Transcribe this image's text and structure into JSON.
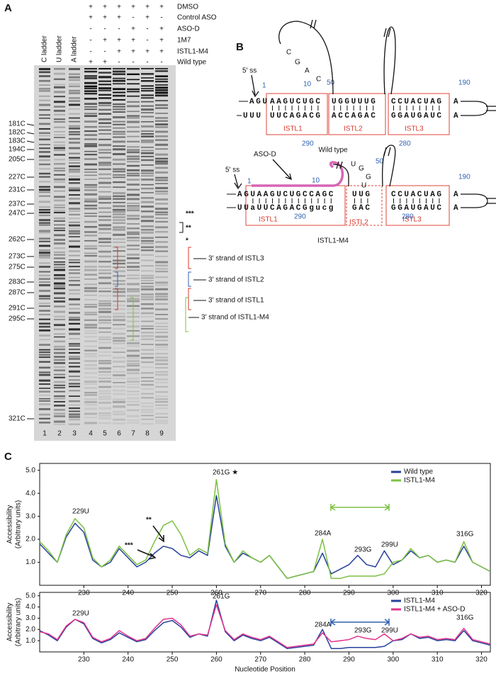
{
  "panel_a": {
    "label": "A",
    "lane_headers": [
      "C ladder",
      "U ladder",
      "A ladder"
    ],
    "conditions": [
      {
        "name": "DMSO",
        "marks": [
          "+",
          "+",
          "+",
          "+",
          "+",
          "+"
        ]
      },
      {
        "name": "Control ASO",
        "marks": [
          "+",
          "+",
          "+",
          "-",
          "+",
          "-"
        ]
      },
      {
        "name": "ASO-D",
        "marks": [
          "-",
          "-",
          "-",
          "+",
          "-",
          "+"
        ]
      },
      {
        "name": "1M7",
        "marks": [
          "-",
          "+",
          "+",
          "+",
          "-",
          "+"
        ]
      },
      {
        "name": "ISTL1-M4",
        "marks": [
          "-",
          "-",
          "+",
          "+",
          "+",
          "+"
        ]
      },
      {
        "name": "Wild type",
        "marks": [
          "+",
          "+",
          "-",
          "-",
          "-",
          "-"
        ]
      }
    ],
    "band_labels": [
      "181C",
      "182C",
      "183C",
      "194C",
      "205C",
      "227C",
      "231C",
      "237C",
      "247C",
      "262C",
      "273C",
      "275C",
      "283C",
      "287C",
      "291C",
      "295C",
      "321C"
    ],
    "lane_numbers": [
      1,
      2,
      3,
      4,
      5,
      6,
      7,
      8,
      9
    ],
    "star_marks": [
      "***",
      "**",
      "*"
    ],
    "strand_labels": [
      "3′ strand of ISTL3",
      "3′ strand of ISTL2",
      "3′ strand of ISTL1",
      "3′ strand of ISTL1-M4"
    ]
  },
  "panel_b": {
    "label": "B",
    "wild_type": {
      "caption": "Wild type",
      "splice_site": "5′ ss",
      "numbers": [
        "1",
        "10",
        "50",
        "290",
        "280",
        "190"
      ],
      "loop": [
        "C",
        "G",
        "A",
        "C"
      ],
      "top": [
        "AGU",
        "AAGUCUGC",
        "UGGUUUG",
        "CCUACUAG",
        "A"
      ],
      "bottom": [
        "UUU",
        "UUCAGACG",
        "ACCAGAC",
        "GGAUGAUC",
        "A"
      ],
      "boxes": [
        "ISTL1",
        "ISTL2",
        "ISTL3"
      ]
    },
    "mutant": {
      "caption": "ISTL1-M4",
      "splice_site": "5′ ss",
      "aso": "ASO-D",
      "numbers": [
        "1",
        "10",
        "50",
        "290",
        "280",
        "190"
      ],
      "loop": [
        "U",
        "G",
        "G",
        "U"
      ],
      "top": [
        "AG",
        "UAAGUCUGCCAGC",
        "UUG",
        "CCUACUAG",
        "A"
      ],
      "bottom": [
        "UU",
        "a",
        "UUCAGACG",
        "gucg",
        "GAC",
        "GGAUGAUC",
        "A"
      ],
      "boxes": [
        "ISTL1",
        "ISTL2",
        "ISTL3"
      ]
    }
  },
  "panel_c_label": "C",
  "chart_data": [
    {
      "type": "line",
      "ylabel": [
        "Accessibility",
        "(Arbitrary units)"
      ],
      "x": [
        220,
        222,
        224,
        226,
        228,
        230,
        232,
        234,
        236,
        238,
        240,
        242,
        244,
        246,
        248,
        250,
        252,
        254,
        256,
        258,
        260,
        262,
        264,
        266,
        268,
        270,
        272,
        274,
        276,
        278,
        280,
        282,
        284,
        286,
        288,
        290,
        292,
        294,
        296,
        298,
        300,
        302,
        304,
        306,
        308,
        310,
        312,
        314,
        316,
        318,
        320,
        322
      ],
      "series": [
        {
          "name": "Wild type",
          "color": "#27419a",
          "values": [
            1.8,
            1.4,
            1.0,
            2.1,
            2.7,
            2.3,
            1.1,
            0.8,
            1.0,
            1.6,
            1.2,
            0.8,
            1.0,
            1.4,
            1.7,
            1.6,
            1.3,
            1.2,
            1.5,
            1.3,
            3.9,
            1.7,
            1.0,
            1.4,
            1.2,
            1.0,
            1.3,
            0.8,
            0.3,
            0.4,
            0.5,
            0.6,
            1.4,
            0.5,
            0.7,
            0.9,
            1.3,
            0.9,
            0.8,
            1.5,
            0.9,
            1.1,
            1.5,
            1.2,
            1.3,
            1.0,
            1.1,
            1.0,
            1.7,
            1.0,
            0.8,
            0.6
          ]
        },
        {
          "name": "ISTL1-M4",
          "color": "#7dc142",
          "values": [
            1.9,
            1.5,
            1.0,
            2.2,
            2.9,
            2.5,
            1.2,
            0.8,
            1.1,
            1.7,
            1.3,
            0.9,
            1.1,
            1.9,
            2.6,
            2.8,
            2.2,
            1.3,
            1.6,
            1.4,
            4.6,
            1.8,
            1.0,
            1.5,
            1.2,
            1.0,
            1.3,
            0.8,
            0.3,
            0.4,
            0.5,
            0.6,
            2.0,
            0.3,
            0.3,
            0.4,
            0.4,
            0.4,
            0.4,
            0.5,
            1.0,
            1.1,
            1.6,
            1.2,
            1.3,
            1.0,
            1.1,
            1.0,
            1.9,
            1.0,
            0.8,
            0.6
          ]
        }
      ],
      "xlim": [
        220,
        322
      ],
      "ylim": [
        0,
        5.3
      ],
      "xticks": [
        230,
        240,
        250,
        260,
        270,
        280,
        290,
        300,
        310,
        320
      ],
      "yticks": [
        {
          "value": 1,
          "label": "1.0"
        },
        {
          "value": 2,
          "label": "2.0"
        },
        {
          "value": 3,
          "label": "3.0"
        },
        {
          "value": 4,
          "label": "4.0"
        },
        {
          "value": 5,
          "label": "5.0"
        }
      ],
      "annotations": [
        "229U",
        "***",
        "**",
        "261G ★",
        "284A",
        "293G",
        "299U",
        "316G"
      ],
      "legend": "upper right"
    },
    {
      "type": "line",
      "ylabel": [
        "Accessibility",
        "(Arbitrary units)"
      ],
      "xlabel": "Nucleotide Position",
      "x": [
        220,
        222,
        224,
        226,
        228,
        230,
        232,
        234,
        236,
        238,
        240,
        242,
        244,
        246,
        248,
        250,
        252,
        254,
        256,
        258,
        260,
        262,
        264,
        266,
        268,
        270,
        272,
        274,
        276,
        278,
        280,
        282,
        284,
        286,
        288,
        290,
        292,
        294,
        296,
        298,
        300,
        302,
        304,
        306,
        308,
        310,
        312,
        314,
        316,
        318,
        320,
        322
      ],
      "series": [
        {
          "name": "ISTL1-M4",
          "color": "#27419a",
          "values": [
            1.9,
            1.5,
            1.0,
            2.2,
            2.9,
            2.5,
            1.2,
            0.8,
            1.1,
            1.7,
            1.3,
            0.9,
            1.1,
            1.9,
            2.6,
            2.8,
            2.2,
            1.3,
            1.6,
            1.4,
            4.6,
            1.8,
            1.0,
            1.5,
            1.2,
            1.0,
            1.3,
            0.8,
            0.3,
            0.4,
            0.5,
            0.6,
            2.0,
            0.3,
            0.3,
            0.4,
            0.4,
            0.4,
            0.4,
            0.5,
            1.0,
            1.1,
            1.6,
            1.2,
            1.3,
            1.0,
            1.1,
            1.0,
            1.9,
            1.0,
            0.8,
            0.6
          ]
        },
        {
          "name": "ISTL1-M4 + ASO-D",
          "color": "#e2338c",
          "values": [
            1.8,
            1.6,
            1.1,
            2.3,
            2.9,
            2.6,
            1.3,
            0.9,
            1.2,
            1.9,
            1.4,
            1.0,
            1.2,
            2.1,
            2.9,
            3.0,
            2.4,
            1.4,
            1.6,
            1.5,
            4.2,
            1.9,
            1.1,
            1.6,
            1.3,
            1.1,
            1.4,
            0.9,
            0.4,
            0.5,
            0.6,
            0.7,
            1.7,
            0.9,
            1.0,
            1.1,
            1.4,
            1.2,
            1.1,
            1.6,
            1.0,
            1.2,
            1.6,
            1.3,
            1.4,
            1.1,
            1.2,
            1.1,
            2.1,
            1.1,
            0.9,
            0.7
          ]
        }
      ],
      "xlim": [
        220,
        322
      ],
      "ylim": [
        0,
        5.3
      ],
      "xticks": [
        230,
        240,
        250,
        260,
        270,
        280,
        290,
        300,
        310,
        320
      ],
      "yticks": [
        {
          "value": 1,
          "label": "1.0"
        },
        {
          "value": 2,
          "label": "2.0"
        },
        {
          "value": 3,
          "label": "3.0"
        },
        {
          "value": 4,
          "label": "4.0"
        },
        {
          "value": 5,
          "label": "5.0"
        }
      ],
      "annotations": [
        "229U",
        "261G",
        "284A",
        "293G",
        "299U",
        "316G"
      ],
      "legend": "upper right"
    }
  ]
}
